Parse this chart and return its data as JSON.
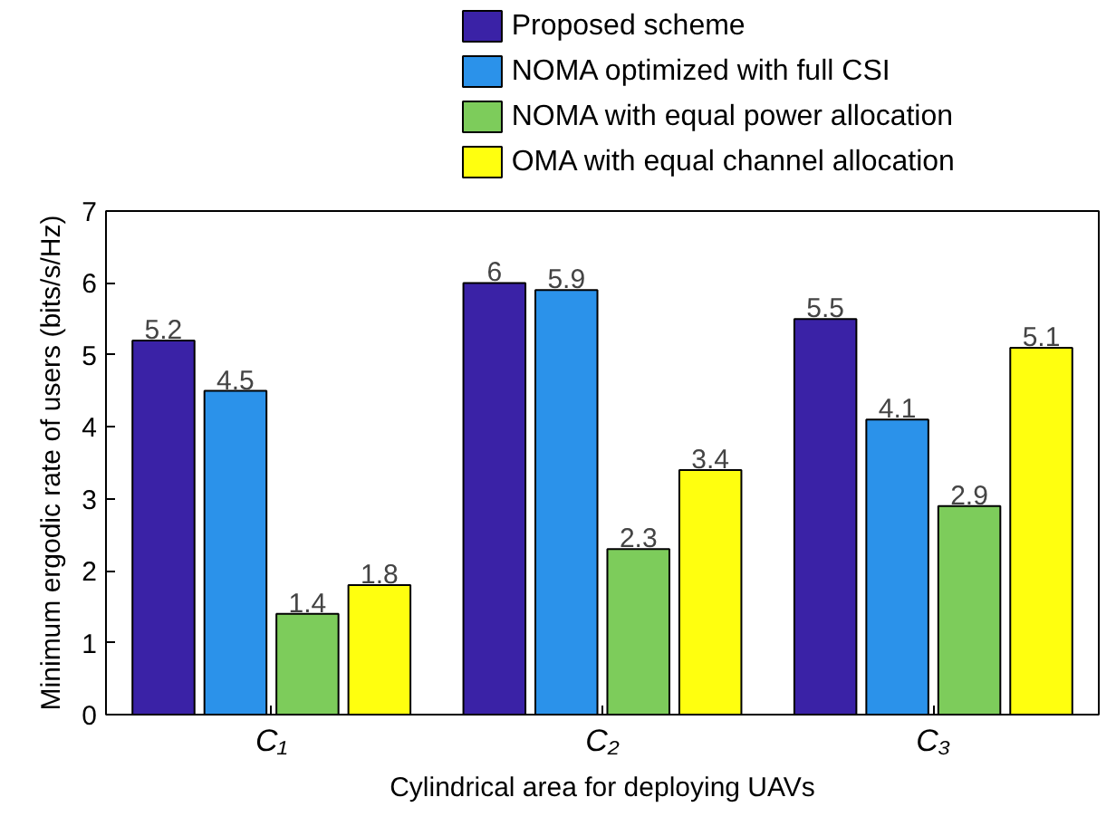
{
  "chart_data": {
    "type": "bar",
    "xlabel": "Cylindrical area for deploying UAVs",
    "ylabel": "Minimum ergodic rate of users (bits/s/Hz)",
    "categories": [
      "C₁",
      "C₂",
      "C₃"
    ],
    "series": [
      {
        "name": "Proposed scheme",
        "color": "#3a22a6",
        "values": [
          5.2,
          6,
          5.5
        ]
      },
      {
        "name": "NOMA optimized with full CSI",
        "color": "#2b92ea",
        "values": [
          4.5,
          5.9,
          4.1
        ]
      },
      {
        "name": "NOMA with equal power allocation",
        "color": "#7dcc5b",
        "values": [
          1.4,
          2.3,
          2.9
        ]
      },
      {
        "name": "OMA with equal channel allocation",
        "color": "#ffff0f",
        "values": [
          1.8,
          3.4,
          5.1
        ]
      }
    ],
    "ylim": [
      0,
      7
    ],
    "yticks": [
      0,
      1,
      2,
      3,
      4,
      5,
      6,
      7
    ],
    "data_labels": true,
    "grid": false,
    "legend": "top"
  }
}
